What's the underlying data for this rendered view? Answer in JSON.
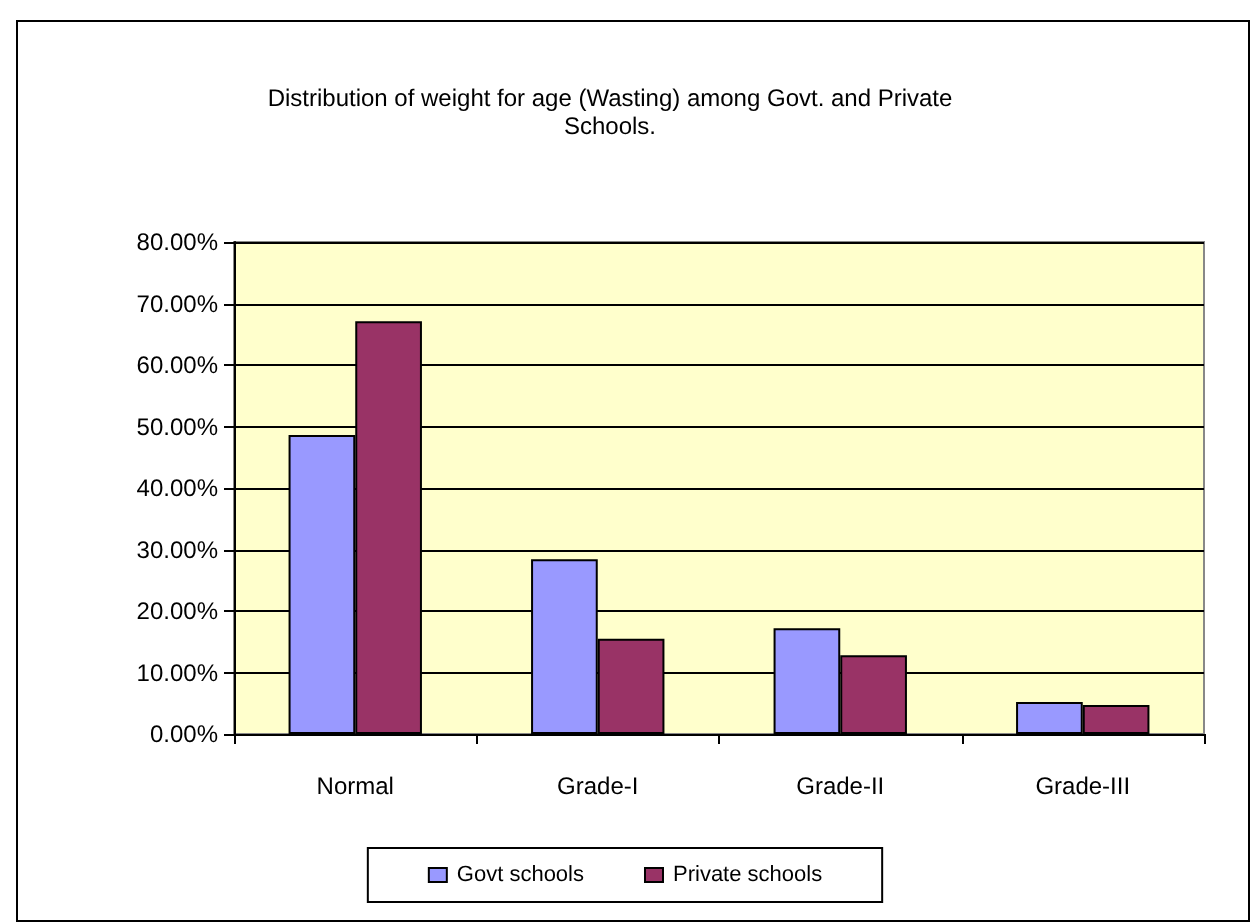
{
  "chart_data": {
    "type": "bar",
    "title": "Distribution of weight for age (Wasting) among Govt. and Private\nSchools.",
    "categories": [
      "Normal",
      "Grade-I",
      "Grade-II",
      "Grade-III"
    ],
    "series": [
      {
        "name": "Govt schools",
        "color": "#9999ff",
        "values": [
          48.6,
          28.4,
          17.2,
          5.2
        ]
      },
      {
        "name": "Private schools",
        "color": "#993366",
        "values": [
          67.1,
          15.5,
          12.8,
          4.7
        ]
      }
    ],
    "ylim": [
      0,
      80
    ],
    "yticks": [
      {
        "value": 0,
        "label": "0.00%"
      },
      {
        "value": 10,
        "label": "10.00%"
      },
      {
        "value": 20,
        "label": "20.00%"
      },
      {
        "value": 30,
        "label": "30.00%"
      },
      {
        "value": 40,
        "label": "40.00%"
      },
      {
        "value": 50,
        "label": "50.00%"
      },
      {
        "value": 60,
        "label": "60.00%"
      },
      {
        "value": 70,
        "label": "70.00%"
      },
      {
        "value": 80,
        "label": "80.00%"
      }
    ],
    "grid": "y",
    "legend": "bottom"
  }
}
